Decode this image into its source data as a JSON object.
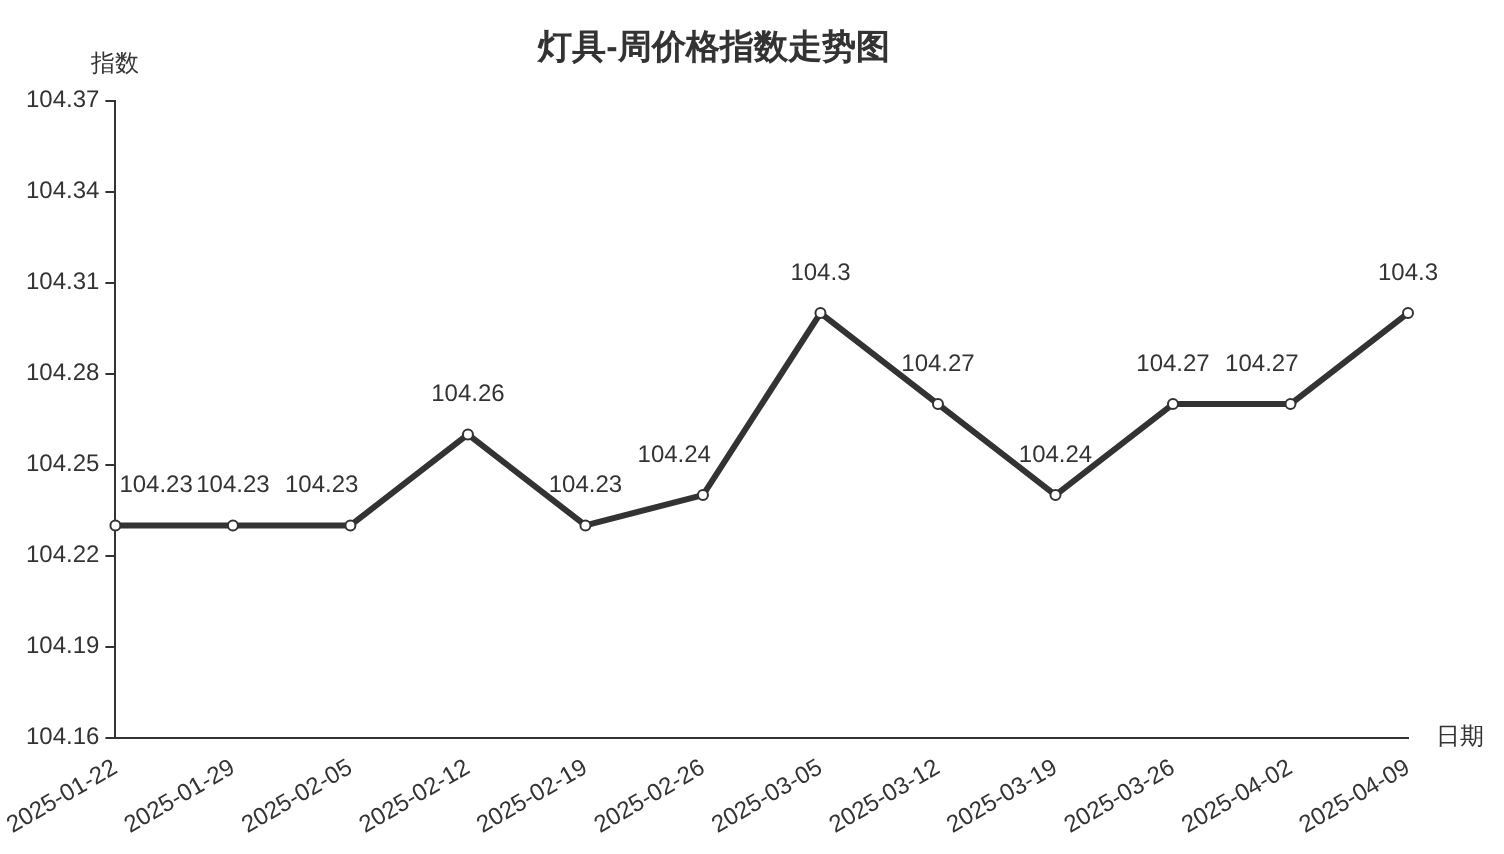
{
  "chart_data": {
    "type": "line",
    "title": "灯具-周价格指数走势图",
    "xlabel": "日期",
    "ylabel": "指数",
    "categories": [
      "2025-01-22",
      "2025-01-29",
      "2025-02-05",
      "2025-02-12",
      "2025-02-19",
      "2025-02-26",
      "2025-03-05",
      "2025-03-12",
      "2025-03-19",
      "2025-03-26",
      "2025-04-02",
      "2025-04-09"
    ],
    "series": [
      {
        "color": "#333333",
        "values": [
          104.23,
          104.23,
          104.23,
          104.26,
          104.23,
          104.24,
          104.3,
          104.27,
          104.24,
          104.27,
          104.27,
          104.3
        ]
      }
    ],
    "ylim": [
      104.16,
      104.37
    ],
    "yticks": [
      104.16,
      104.19,
      104.22,
      104.25,
      104.28,
      104.31,
      104.34,
      104.37
    ],
    "grid": false,
    "legend": false,
    "marker": "circle",
    "line_style": "solid",
    "data_labels": true
  }
}
